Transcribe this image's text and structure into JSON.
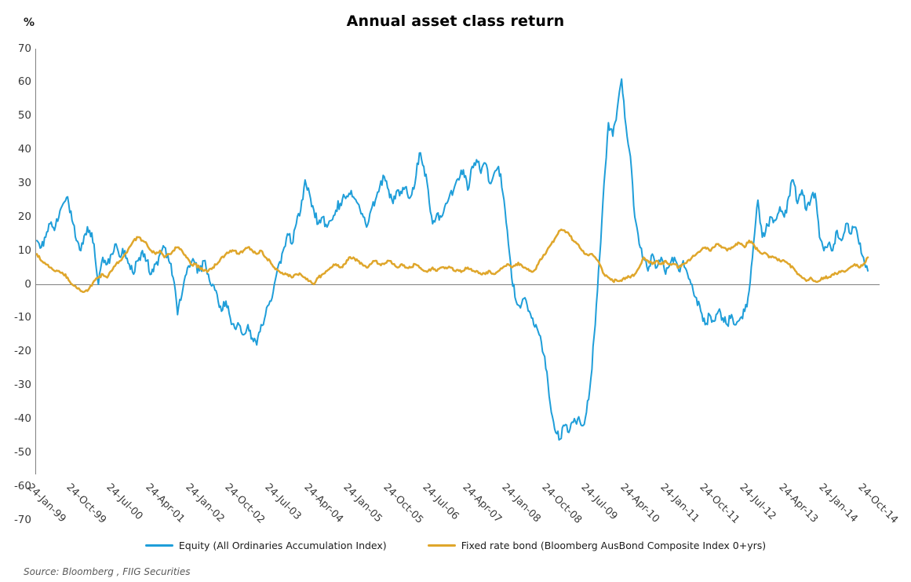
{
  "title": "Annual asset class return",
  "y_axis": {
    "unit_label": "%",
    "ticks": [
      70,
      60,
      50,
      40,
      30,
      20,
      10,
      0,
      -10,
      -20,
      -30,
      -40,
      -50,
      -60,
      -70
    ]
  },
  "x_axis": {
    "tick_labels": [
      "24-Jan-99",
      "24-Oct-99",
      "24-Jul-00",
      "24-Apr-01",
      "24-Jan-02",
      "24-Oct-02",
      "24-Jul-03",
      "24-Apr-04",
      "24-Jan-05",
      "24-Oct-05",
      "24-Jul-06",
      "24-Apr-07",
      "24-Jan-08",
      "24-Oct-08",
      "24-Jul-09",
      "24-Apr-10",
      "24-Jan-11",
      "24-Oct-11",
      "24-Jul-12",
      "24-Apr-13",
      "24-Jan-14",
      "24-Oct-14"
    ]
  },
  "legend": [
    {
      "label": "Equity (All Ordinaries Accumulation Index)",
      "color": "#1F9ED9"
    },
    {
      "label": "Fixed rate bond (Bloomberg AusBond Composite Index 0+yrs)",
      "color": "#DFA62B"
    }
  ],
  "source_note": "Source: Bloomberg , FIIG Securities",
  "chart_data": {
    "type": "line",
    "title": "Annual asset class return",
    "ylabel": "%",
    "ylim": [
      -70,
      70
    ],
    "grid": false,
    "zero_line": true,
    "legend_position": "bottom",
    "x_start": "1999-01",
    "x_end": "2014-10",
    "x_resolution": "monthly estimates read from a weekly plot",
    "x_tick_labels": [
      "24-Jan-99",
      "24-Oct-99",
      "24-Jul-00",
      "24-Apr-01",
      "24-Jan-02",
      "24-Oct-02",
      "24-Jul-03",
      "24-Apr-04",
      "24-Jan-05",
      "24-Oct-05",
      "24-Jul-06",
      "24-Apr-07",
      "24-Jan-08",
      "24-Oct-08",
      "24-Jul-09",
      "24-Apr-10",
      "24-Jan-11",
      "24-Oct-11",
      "24-Jul-12",
      "24-Apr-13",
      "24-Jan-14",
      "24-Oct-14"
    ],
    "series": [
      {
        "name": "Equity (All Ordinaries Accumulation Index)",
        "color": "#1F9ED9",
        "values": [
          13,
          11,
          14,
          18,
          16,
          20,
          24,
          26,
          19,
          13,
          10,
          15,
          16,
          12,
          0,
          8,
          6,
          9,
          12,
          8,
          10,
          6,
          3,
          7,
          10,
          7,
          3,
          6,
          9,
          11,
          7,
          2,
          -9,
          -3,
          3,
          6,
          6,
          4,
          7,
          3,
          0,
          -3,
          -8,
          -5,
          -10,
          -13,
          -12,
          -15,
          -12,
          -16,
          -18,
          -12,
          -9,
          -5,
          0,
          6,
          10,
          15,
          12,
          18,
          22,
          31,
          27,
          22,
          18,
          20,
          17,
          19,
          22,
          24,
          26,
          27,
          26,
          24,
          21,
          17,
          22,
          25,
          29,
          32,
          28,
          24,
          28,
          27,
          29,
          26,
          30,
          39,
          35,
          28,
          18,
          21,
          20,
          24,
          27,
          29,
          31,
          34,
          28,
          35,
          37,
          33,
          36,
          30,
          33,
          35,
          27,
          16,
          2,
          -5,
          -7,
          -4,
          -8,
          -12,
          -14,
          -20,
          -26,
          -38,
          -44,
          -46,
          -42,
          -44,
          -41,
          -40,
          -42,
          -38,
          -28,
          -12,
          8,
          30,
          48,
          44,
          52,
          61,
          47,
          38,
          20,
          12,
          8,
          4,
          9,
          5,
          8,
          3,
          6,
          8,
          4,
          7,
          3,
          0,
          -4,
          -8,
          -12,
          -9,
          -11,
          -8,
          -10,
          -12,
          -9,
          -12,
          -10,
          -8,
          -2,
          12,
          25,
          14,
          18,
          20,
          19,
          23,
          20,
          26,
          31,
          24,
          28,
          22,
          25,
          27,
          14,
          10,
          12,
          10,
          16,
          13,
          18,
          15,
          17,
          12,
          8,
          4
        ]
      },
      {
        "name": "Fixed rate bond (Bloomberg AusBond Composite Index 0+yrs)",
        "color": "#DFA62B",
        "values": [
          9,
          7,
          6,
          5,
          4,
          4,
          3,
          2,
          0,
          -1,
          -2,
          -2,
          -1,
          1,
          2,
          3,
          2,
          4,
          6,
          7,
          9,
          11,
          13,
          14,
          13,
          12,
          10,
          9,
          10,
          8,
          9,
          10,
          11,
          10,
          8,
          6,
          6,
          5,
          4,
          4,
          5,
          6,
          8,
          9,
          10,
          10,
          9,
          10,
          11,
          10,
          9,
          10,
          8,
          7,
          5,
          4,
          3,
          3,
          2,
          3,
          3,
          2,
          1,
          0,
          2,
          3,
          4,
          5,
          6,
          5,
          6,
          8,
          8,
          7,
          6,
          5,
          6,
          7,
          6,
          6,
          7,
          6,
          5,
          6,
          5,
          5,
          6,
          5,
          4,
          4,
          5,
          4,
          5,
          5,
          5,
          4,
          4,
          4,
          5,
          4,
          4,
          3,
          3,
          4,
          3,
          4,
          5,
          6,
          5,
          6,
          6,
          5,
          4,
          4,
          6,
          8,
          10,
          12,
          14,
          16,
          16,
          15,
          13,
          12,
          10,
          9,
          9,
          8,
          6,
          3,
          2,
          1,
          1,
          1,
          2,
          2,
          3,
          5,
          8,
          7,
          6,
          7,
          6,
          7,
          6,
          6,
          5,
          6,
          7,
          8,
          9,
          10,
          11,
          10,
          11,
          12,
          11,
          10,
          11,
          12,
          12,
          11,
          13,
          12,
          10,
          9,
          9,
          8,
          8,
          7,
          7,
          6,
          5,
          3,
          2,
          1,
          2,
          1,
          1,
          2,
          2,
          3,
          3,
          4,
          4,
          5,
          6,
          5,
          6,
          8
        ]
      }
    ]
  }
}
